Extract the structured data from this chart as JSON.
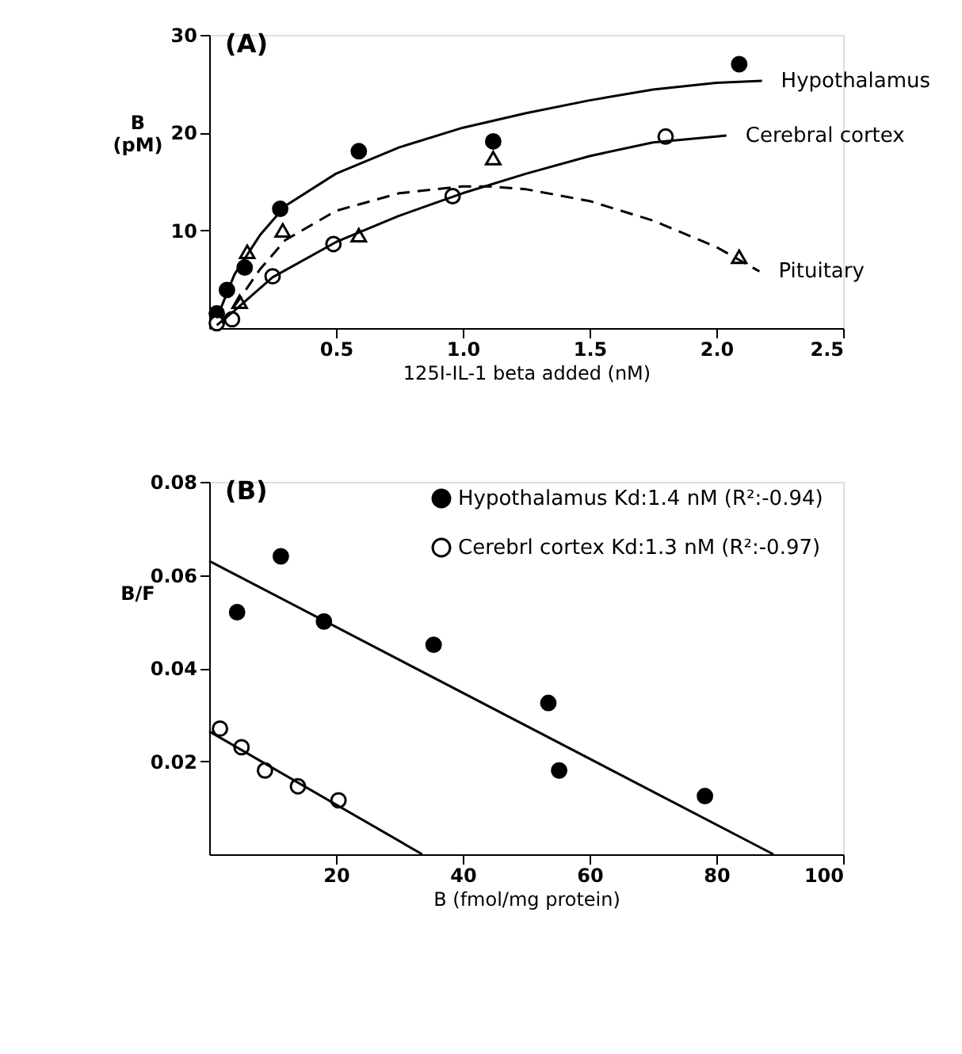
{
  "chart_data": [
    {
      "type": "scatter",
      "title": "(A)",
      "xlabel": "125I-IL-1 beta added (nM)",
      "ylabel": "B (pM)",
      "xlim": [
        0,
        2.5
      ],
      "ylim": [
        0,
        30
      ],
      "xticks": [
        0.5,
        {
          "value": 1,
          "label": "1.0"
        },
        1.5,
        {
          "value": 2,
          "label": "2.0"
        },
        2.5
      ],
      "yticks": [
        10,
        20,
        30
      ],
      "grid": false,
      "legend": false,
      "series": [
        {
          "marker": "circle",
          "color": "#000000",
          "x": [
            0.03,
            0.07,
            0.14,
            0.28,
            0.59,
            1.12,
            2.09
          ],
          "values": [
            1.5,
            3.9,
            6.2,
            12.2,
            18.1,
            19.1,
            27.0
          ]
        },
        {
          "marker": "circle",
          "color": "#ffffff",
          "x": [
            0.03,
            0.09,
            0.25,
            0.49,
            0.96,
            1.8
          ],
          "values": [
            0.5,
            0.9,
            5.3,
            8.6,
            13.5,
            19.6
          ]
        },
        {
          "marker": "triangle",
          "color": "#ffffff",
          "x": [
            0.12,
            0.15,
            0.29,
            0.59,
            1.12,
            2.09
          ],
          "values": [
            2.7,
            7.8,
            10.0,
            9.5,
            17.4,
            7.3
          ]
        },
        {
          "type": "line",
          "name": "Hypothalamus",
          "line_style": "solid",
          "color": "#000000",
          "x": [
            0.03,
            0.1,
            0.2,
            0.3,
            0.5,
            0.75,
            1.0,
            1.25,
            1.5,
            1.75,
            2.0,
            2.18
          ],
          "values": [
            1.0,
            5.5,
            9.5,
            12.5,
            15.8,
            18.5,
            20.5,
            22.0,
            23.3,
            24.4,
            25.1,
            25.3
          ]
        },
        {
          "type": "line",
          "name": "Cerebral cortex",
          "line_style": "solid",
          "color": "#000000",
          "x": [
            0.03,
            0.1,
            0.25,
            0.5,
            0.75,
            1.0,
            1.25,
            1.5,
            1.75,
            2.0,
            2.04
          ],
          "values": [
            0.3,
            1.8,
            5.2,
            8.8,
            11.5,
            13.8,
            15.8,
            17.6,
            19.0,
            19.6,
            19.7
          ]
        },
        {
          "type": "line",
          "name": "Pituitary",
          "line_style": "dashed",
          "color": "#000000",
          "x": [
            0.05,
            0.12,
            0.2,
            0.3,
            0.5,
            0.75,
            1.0,
            1.1,
            1.25,
            1.5,
            1.75,
            2.0,
            2.17
          ],
          "values": [
            0.5,
            3.0,
            6.0,
            9.0,
            12.0,
            13.8,
            14.5,
            14.5,
            14.2,
            13.0,
            11.0,
            8.3,
            5.8
          ]
        }
      ]
    },
    {
      "type": "scatter",
      "title": "(B)",
      "xlabel": "B (fmol/mg protein)",
      "ylabel": "B/F",
      "xlim": [
        0,
        100
      ],
      "ylim": [
        0,
        0.08
      ],
      "xticks": [
        20,
        40,
        60,
        80,
        100
      ],
      "yticks": [
        0.02,
        0.04,
        0.06,
        0.08
      ],
      "grid": false,
      "legend": "top right",
      "series": [
        {
          "name": "Hypothalamus  Kd:1.4 nM  (R²:-0.94)",
          "marker": "circle",
          "color": "#000000",
          "x": [
            4.4,
            11.3,
            18.1,
            35.4,
            53.5,
            55.2,
            78.2
          ],
          "values": [
            0.052,
            0.064,
            0.05,
            0.045,
            0.0325,
            0.018,
            0.0125
          ]
        },
        {
          "name": "Cerebrl cortex  Kd:1.3 nM  (R²:-0.97)",
          "marker": "circle",
          "color": "#ffffff",
          "x": [
            1.7,
            5.1,
            8.8,
            14.0,
            20.4
          ],
          "values": [
            0.027,
            0.023,
            0.018,
            0.0146,
            0.0116
          ]
        },
        {
          "type": "line",
          "line_style": "solid",
          "color": "#000000",
          "x": [
            0,
            89
          ],
          "values": [
            0.063,
            0
          ]
        },
        {
          "type": "line",
          "line_style": "solid",
          "color": "#000000",
          "x": [
            0,
            33.6
          ],
          "values": [
            0.0264,
            0
          ]
        }
      ]
    }
  ]
}
